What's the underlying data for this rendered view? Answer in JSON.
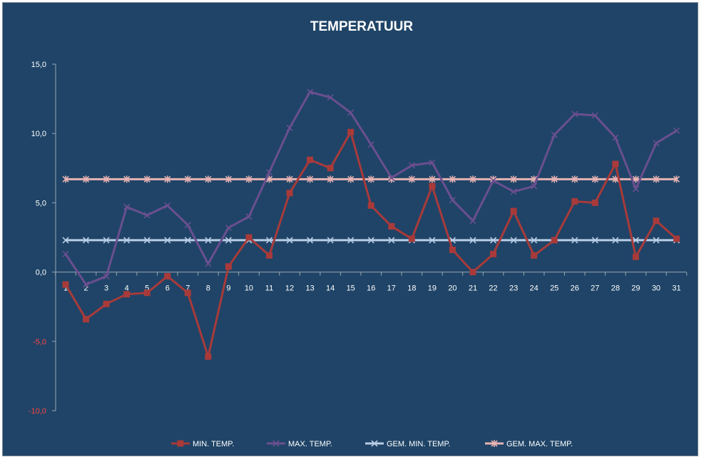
{
  "chart_data": {
    "type": "line",
    "title": "TEMPERATUUR",
    "xlabel": "",
    "ylabel": "",
    "x": [
      "1",
      "2",
      "3",
      "4",
      "5",
      "6",
      "7",
      "8",
      "9",
      "10",
      "11",
      "12",
      "13",
      "14",
      "15",
      "16",
      "17",
      "18",
      "19",
      "20",
      "21",
      "22",
      "23",
      "24",
      "25",
      "26",
      "27",
      "28",
      "29",
      "30",
      "31"
    ],
    "ylim": [
      -10,
      15
    ],
    "yticks": [
      15,
      10,
      5,
      0,
      -5,
      -10
    ],
    "ytick_labels": [
      "15,0",
      "10,0",
      "5,0",
      "0,0",
      "-5,0",
      "-10,0"
    ],
    "grid": false,
    "legend_position": "bottom",
    "series": [
      {
        "name": "MIN. TEMP.",
        "color": "#a83a3a",
        "marker": "square",
        "values": [
          -0.9,
          -3.4,
          -2.3,
          -1.6,
          -1.5,
          -0.3,
          -1.5,
          -6.1,
          0.4,
          2.5,
          1.2,
          5.7,
          8.1,
          7.5,
          10.1,
          4.8,
          3.3,
          2.4,
          6.2,
          1.6,
          0.0,
          1.3,
          4.4,
          1.2,
          2.3,
          5.1,
          5.0,
          7.8,
          1.1,
          3.7,
          2.4
        ]
      },
      {
        "name": "MAX. TEMP.",
        "color": "#6a4f8f",
        "marker": "x",
        "values": [
          1.3,
          -0.9,
          -0.3,
          4.7,
          4.1,
          4.8,
          3.4,
          0.6,
          3.2,
          4.0,
          7.2,
          10.4,
          13.0,
          12.6,
          11.5,
          9.2,
          6.8,
          7.7,
          7.9,
          5.2,
          3.7,
          6.6,
          5.8,
          6.2,
          9.9,
          11.4,
          11.3,
          9.7,
          6.0,
          9.3,
          10.2
        ]
      },
      {
        "name": "GEM. MIN. TEMP.",
        "color": "#b9cde6",
        "marker": "x",
        "values": [
          2.3,
          2.3,
          2.3,
          2.3,
          2.3,
          2.3,
          2.3,
          2.3,
          2.3,
          2.3,
          2.3,
          2.3,
          2.3,
          2.3,
          2.3,
          2.3,
          2.3,
          2.3,
          2.3,
          2.3,
          2.3,
          2.3,
          2.3,
          2.3,
          2.3,
          2.3,
          2.3,
          2.3,
          2.3,
          2.3,
          2.3
        ]
      },
      {
        "name": "GEM. MAX. TEMP.",
        "color": "#e7b3b3",
        "marker": "star",
        "values": [
          6.7,
          6.7,
          6.7,
          6.7,
          6.7,
          6.7,
          6.7,
          6.7,
          6.7,
          6.7,
          6.7,
          6.7,
          6.7,
          6.7,
          6.7,
          6.7,
          6.7,
          6.7,
          6.7,
          6.7,
          6.7,
          6.7,
          6.7,
          6.7,
          6.7,
          6.7,
          6.7,
          6.7,
          6.7,
          6.7,
          6.7
        ]
      }
    ]
  }
}
